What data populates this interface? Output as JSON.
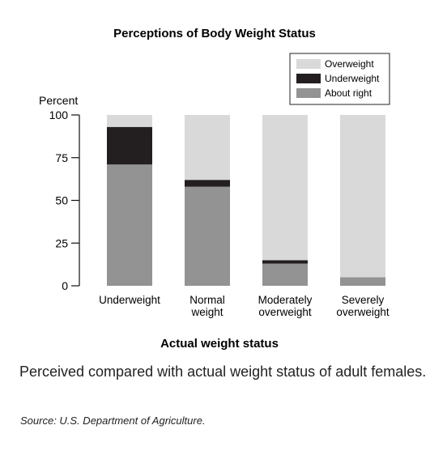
{
  "chart_data": {
    "type": "bar",
    "stacked": true,
    "title": "Perceptions of Body Weight Status",
    "xlabel": "Actual weight status",
    "ylabel": "Percent",
    "ylim": [
      0,
      100
    ],
    "yticks": [
      0,
      25,
      50,
      75,
      100
    ],
    "categories": [
      [
        "Underweight"
      ],
      [
        "Normal",
        "weight"
      ],
      [
        "Moderately",
        "overweight"
      ],
      [
        "Severely",
        "overweight"
      ]
    ],
    "series": [
      {
        "name": "About right",
        "color": "#939393",
        "values": [
          71,
          58,
          13,
          5
        ]
      },
      {
        "name": "Underweight",
        "color": "#231f20",
        "values": [
          22,
          4,
          2,
          0
        ]
      },
      {
        "name": "Overweight",
        "color": "#d9d9d9",
        "values": [
          7,
          38,
          85,
          95
        ]
      }
    ],
    "legend": {
      "placement": "top-right",
      "order": [
        "Overweight",
        "Underweight",
        "About right"
      ]
    },
    "grid": false
  },
  "caption": "Perceived compared with actual weight status of adult females.",
  "source": "Source: U.S. Department of Agriculture."
}
